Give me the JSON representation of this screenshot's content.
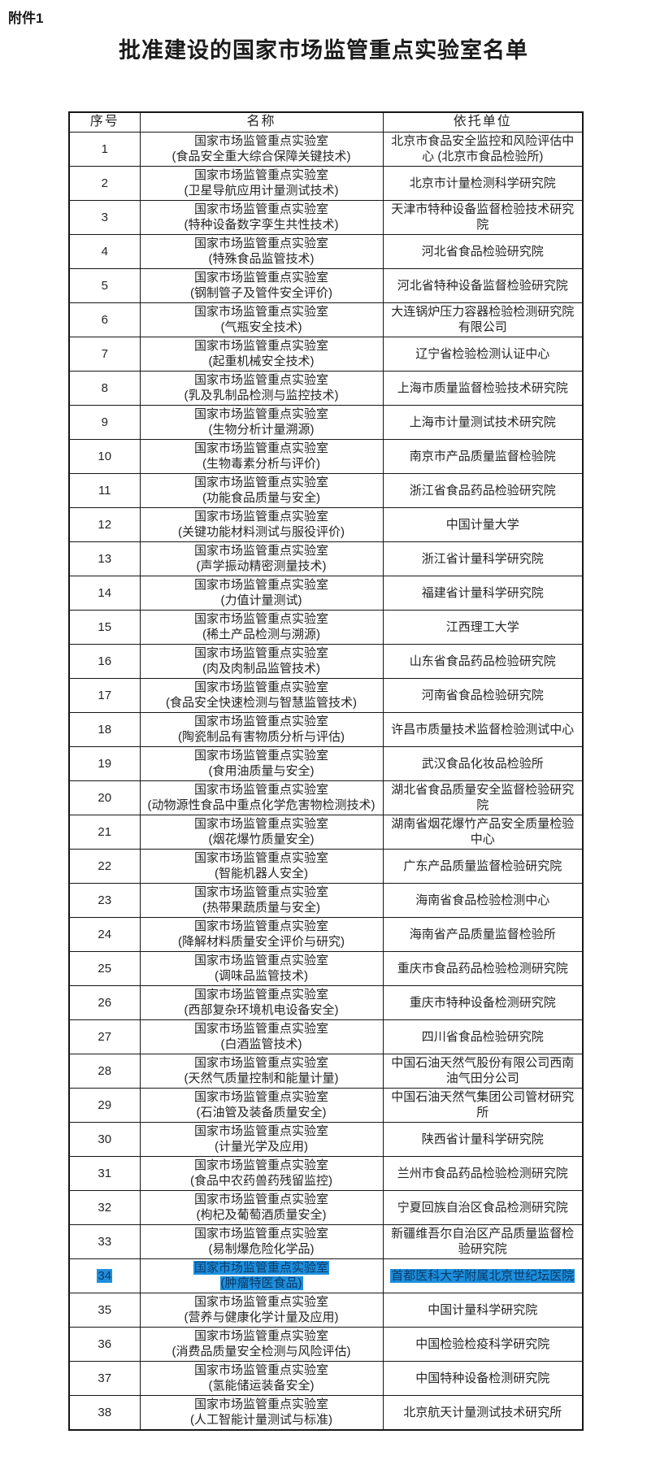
{
  "page": {
    "attachment_label": "附件1",
    "title": "批准建设的国家市场监管重点实验室名单"
  },
  "highlight": {
    "selection_background": "#1e8fdd",
    "selection_text_color": "#0a3a68",
    "selected_row_number": "34"
  },
  "table": {
    "headers": [
      "序号",
      "名称",
      "依托单位"
    ],
    "common_name": "国家市场监管重点实验室",
    "rows": [
      {
        "no": "1",
        "field": "(食品安全重大综合保障关键技术)",
        "unit": "北京市食品安全监控和风险评估中心 (北京市食品检验所)"
      },
      {
        "no": "2",
        "field": "(卫星导航应用计量测试技术)",
        "unit": "北京市计量检测科学研究院"
      },
      {
        "no": "3",
        "field": "(特种设备数字孪生共性技术)",
        "unit": "天津市特种设备监督检验技术研究院"
      },
      {
        "no": "4",
        "field": "(特殊食品监管技术)",
        "unit": "河北省食品检验研究院"
      },
      {
        "no": "5",
        "field": "(钢制管子及管件安全评价)",
        "unit": "河北省特种设备监督检验研究院"
      },
      {
        "no": "6",
        "field": "(气瓶安全技术)",
        "unit": "大连锅炉压力容器检验检测研究院有限公司"
      },
      {
        "no": "7",
        "field": "(起重机械安全技术)",
        "unit": "辽宁省检验检测认证中心"
      },
      {
        "no": "8",
        "field": "(乳及乳制品检测与监控技术)",
        "unit": "上海市质量监督检验技术研究院"
      },
      {
        "no": "9",
        "field": "(生物分析计量溯源)",
        "unit": "上海市计量测试技术研究院"
      },
      {
        "no": "10",
        "field": "(生物毒素分析与评价)",
        "unit": "南京市产品质量监督检验院"
      },
      {
        "no": "11",
        "field": "(功能食品质量与安全)",
        "unit": "浙江省食品药品检验研究院"
      },
      {
        "no": "12",
        "field": "(关键功能材料测试与服役评价)",
        "unit": "中国计量大学"
      },
      {
        "no": "13",
        "field": "(声学振动精密测量技术)",
        "unit": "浙江省计量科学研究院"
      },
      {
        "no": "14",
        "field": "(力值计量测试)",
        "unit": "福建省计量科学研究院"
      },
      {
        "no": "15",
        "field": "(稀土产品检测与溯源)",
        "unit": "江西理工大学"
      },
      {
        "no": "16",
        "field": "(肉及肉制品监管技术)",
        "unit": "山东省食品药品检验研究院"
      },
      {
        "no": "17",
        "field": "(食品安全快速检测与智慧监管技术)",
        "unit": "河南省食品检验研究院"
      },
      {
        "no": "18",
        "field": "(陶瓷制品有害物质分析与评估)",
        "unit": "许昌市质量技术监督检验测试中心"
      },
      {
        "no": "19",
        "field": "(食用油质量与安全)",
        "unit": "武汉食品化妆品检验所"
      },
      {
        "no": "20",
        "field": "(动物源性食品中重点化学危害物检测技术)",
        "unit": "湖北省食品质量安全监督检验研究院"
      },
      {
        "no": "21",
        "field": "(烟花爆竹质量安全)",
        "unit": "湖南省烟花爆竹产品安全质量检验中心"
      },
      {
        "no": "22",
        "field": "(智能机器人安全)",
        "unit": "广东产品质量监督检验研究院"
      },
      {
        "no": "23",
        "field": "(热带果蔬质量与安全)",
        "unit": "海南省食品检验检测中心"
      },
      {
        "no": "24",
        "field": "(降解材料质量安全评价与研究)",
        "unit": "海南省产品质量监督检验所"
      },
      {
        "no": "25",
        "field": "(调味品监管技术)",
        "unit": "重庆市食品药品检验检测研究院"
      },
      {
        "no": "26",
        "field": "(西部复杂环境机电设备安全)",
        "unit": "重庆市特种设备检测研究院"
      },
      {
        "no": "27",
        "field": "(白酒监管技术)",
        "unit": "四川省食品检验研究院"
      },
      {
        "no": "28",
        "field": "(天然气质量控制和能量计量)",
        "unit": "中国石油天然气股份有限公司西南油气田分公司"
      },
      {
        "no": "29",
        "field": "(石油管及装备质量安全)",
        "unit": "中国石油天然气集团公司管材研究所"
      },
      {
        "no": "30",
        "field": "(计量光学及应用)",
        "unit": "陕西省计量科学研究院"
      },
      {
        "no": "31",
        "field": "(食品中农药兽药残留监控)",
        "unit": "兰州市食品药品检验检测研究院"
      },
      {
        "no": "32",
        "field": "(枸杞及葡萄酒质量安全)",
        "unit": "宁夏回族自治区食品检测研究院"
      },
      {
        "no": "33",
        "field": "(易制爆危险化学品)",
        "unit": "新疆维吾尔自治区产品质量监督检验研究院"
      },
      {
        "no": "34",
        "field": "(肿瘤特医食品)",
        "unit": "首都医科大学附属北京世纪坛医院",
        "highlighted": true
      },
      {
        "no": "35",
        "field": "(营养与健康化学计量及应用)",
        "unit": "中国计量科学研究院"
      },
      {
        "no": "36",
        "field": "(消费品质量安全检测与风险评估)",
        "unit": "中国检验检疫科学研究院"
      },
      {
        "no": "37",
        "field": "(氢能储运装备安全)",
        "unit": "中国特种设备检测研究院"
      },
      {
        "no": "38",
        "field": "(人工智能计量测试与标准)",
        "unit": "北京航天计量测试技术研究所"
      }
    ]
  }
}
